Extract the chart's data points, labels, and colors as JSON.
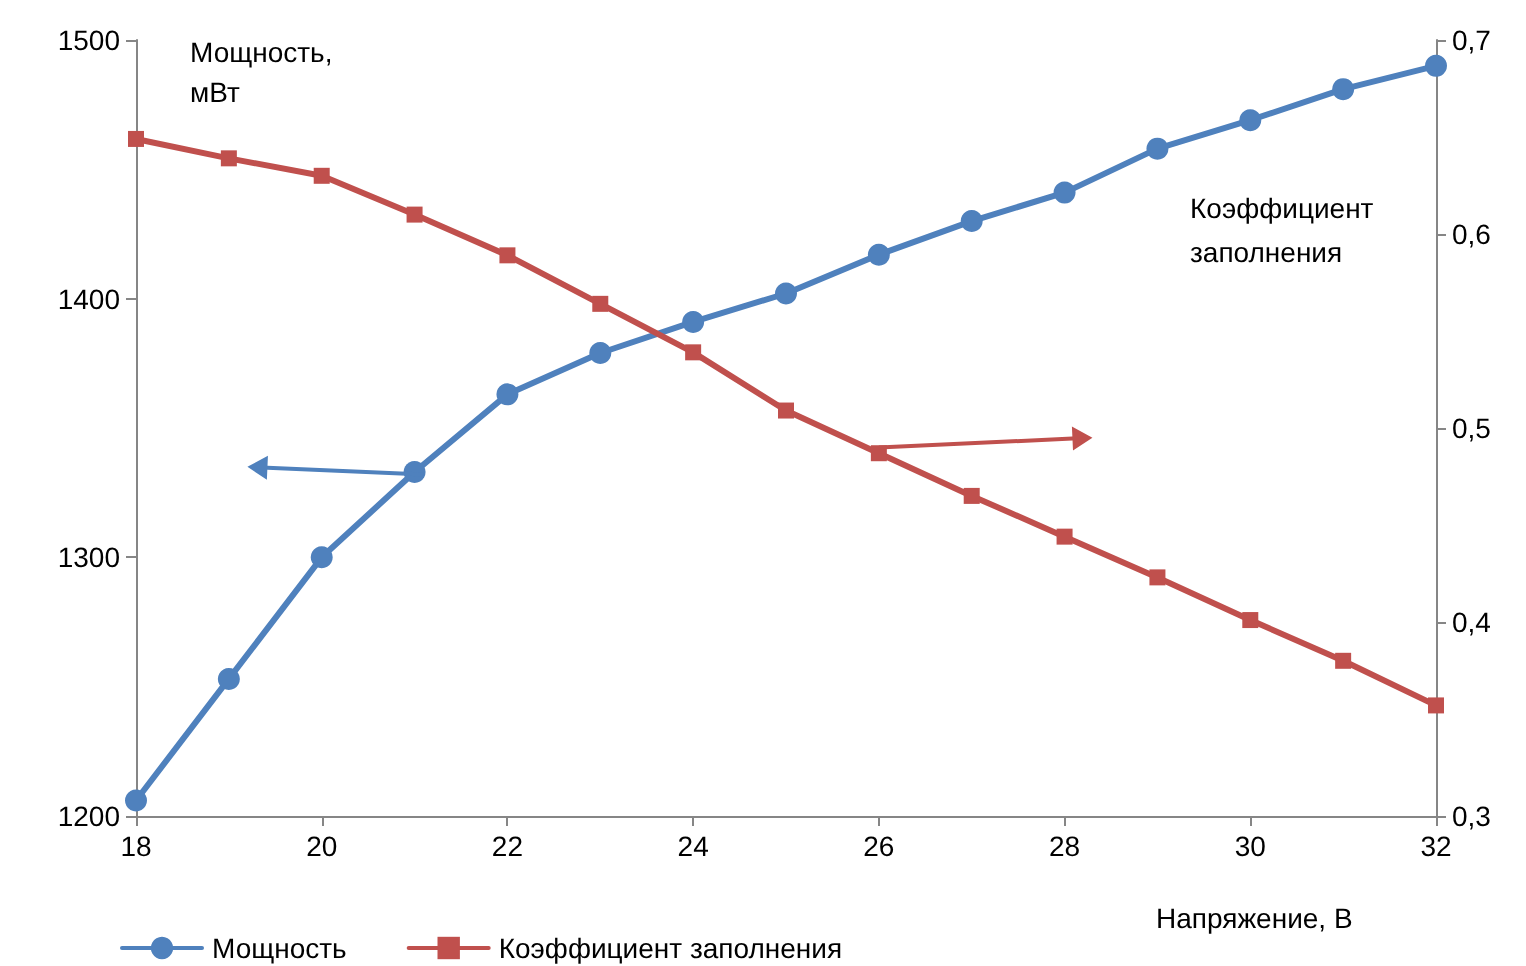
{
  "chart_data": {
    "type": "line",
    "xlabel": "Напряжение, В",
    "ylabel": "Мощность,\nмВт",
    "y2label": "Коэффициент\nзаполнения",
    "x": [
      18,
      19,
      20,
      21,
      22,
      23,
      24,
      25,
      26,
      27,
      28,
      29,
      30,
      31,
      32
    ],
    "xlim": [
      18,
      32
    ],
    "xticks": [
      18,
      20,
      22,
      24,
      26,
      28,
      30,
      32
    ],
    "ylim": [
      1200,
      1500
    ],
    "yticks": [
      1200,
      1300,
      1400,
      1500
    ],
    "y2lim": [
      0.3,
      0.7
    ],
    "y2ticks": [
      {
        "value": 0.3,
        "label": "0,3"
      },
      {
        "value": 0.4,
        "label": "0,4"
      },
      {
        "value": 0.5,
        "label": "0,5"
      },
      {
        "value": 0.6,
        "label": "0,6"
      },
      {
        "value": 0.7,
        "label": "0,7"
      }
    ],
    "series": [
      {
        "name": "Мощность",
        "color": "#4f81bd",
        "marker": "circle",
        "values": [
          1206,
          1253,
          1300,
          1333,
          1363,
          1379,
          1391,
          1402,
          1417,
          1430,
          1441,
          1458,
          1469,
          1481,
          1490
        ]
      },
      {
        "name": "Коэффициент заполнения",
        "color": "#c0504d",
        "marker": "square",
        "axis": "y2",
        "values": [
          0.649,
          0.639,
          0.63,
          0.61,
          0.589,
          0.564,
          0.539,
          0.509,
          0.487,
          0.465,
          0.444,
          0.423,
          0.401,
          0.38,
          0.357
        ]
      }
    ],
    "grid": false,
    "legend": "bottom left"
  }
}
